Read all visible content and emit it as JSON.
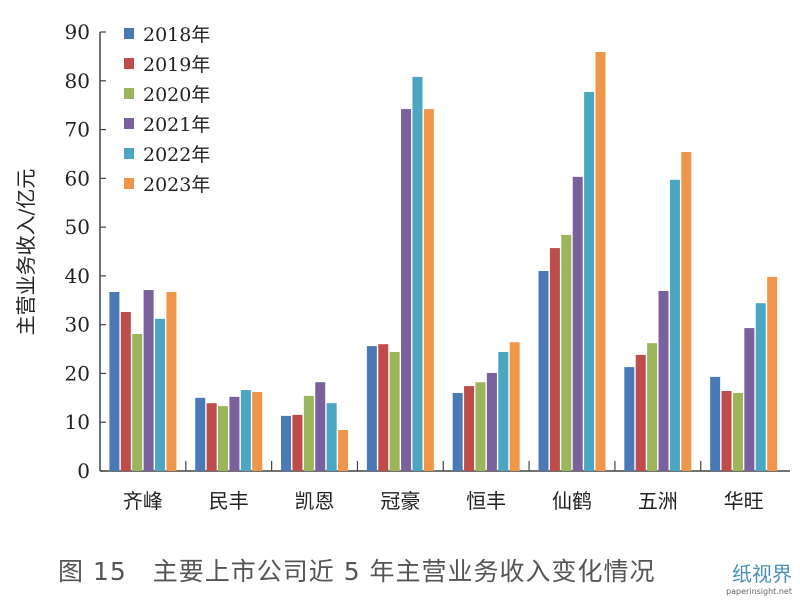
{
  "chart_data": {
    "type": "bar",
    "title": "",
    "xlabel": "",
    "ylabel": "主营业务收入/亿元",
    "ylim": [
      0,
      90
    ],
    "yticks": [
      0,
      10,
      20,
      30,
      40,
      50,
      60,
      70,
      80,
      90
    ],
    "grid": false,
    "legend_placement": "top-left",
    "categories": [
      "齐峰",
      "民丰",
      "凯恩",
      "冠豪",
      "恒丰",
      "仙鹤",
      "五洲",
      "华旺"
    ],
    "series": [
      {
        "name": "2018年",
        "color": "#4a7ab5",
        "values": [
          36.7,
          15.0,
          11.3,
          25.6,
          16.0,
          41.0,
          21.3,
          19.3
        ]
      },
      {
        "name": "2019年",
        "color": "#bd4c4a",
        "values": [
          32.6,
          13.9,
          11.5,
          26.0,
          17.4,
          45.7,
          23.8,
          16.4
        ]
      },
      {
        "name": "2020年",
        "color": "#9bb55a",
        "values": [
          28.1,
          13.3,
          15.4,
          24.4,
          18.2,
          48.4,
          26.2,
          16.0
        ]
      },
      {
        "name": "2021年",
        "color": "#7a619e",
        "values": [
          37.1,
          15.2,
          18.2,
          74.2,
          20.1,
          60.3,
          36.9,
          29.3
        ]
      },
      {
        "name": "2022年",
        "color": "#4aa6c1",
        "values": [
          31.2,
          16.6,
          13.9,
          80.8,
          24.4,
          77.7,
          59.7,
          34.4
        ]
      },
      {
        "name": "2023年",
        "color": "#f0964a",
        "values": [
          36.7,
          16.2,
          8.4,
          74.2,
          26.4,
          85.9,
          65.4,
          39.8
        ]
      }
    ]
  },
  "caption": "图 15　主要上市公司近 5 年主营业务收入变化情况",
  "watermark": {
    "title": "纸视界",
    "url": "paperinsight.net"
  }
}
